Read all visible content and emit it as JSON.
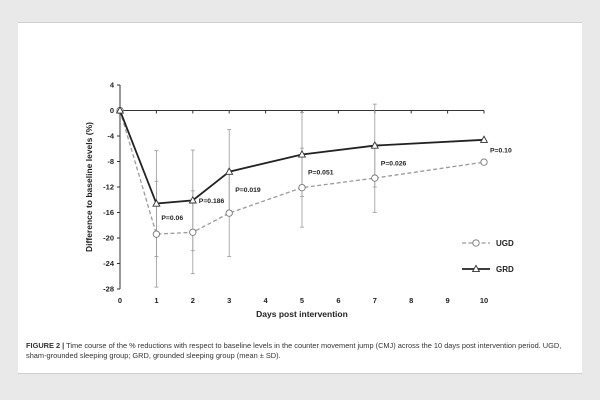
{
  "caption": {
    "label": "FIGURE 2 |",
    "text": "Time course of the % reductions with respect to baseline levels in the counter movement jump (CMJ) across the 10 days post intervention period. UGD, sham-grounded sleeping group; GRD, grounded sleeping group (mean ± SD)."
  },
  "chart_data": {
    "type": "line",
    "xlabel": "Days post intervention",
    "ylabel": "Difference to baseline levels (%)",
    "xlim": [
      0,
      10
    ],
    "ylim": [
      -28,
      4
    ],
    "xticks": [
      0,
      1,
      2,
      3,
      4,
      5,
      6,
      7,
      8,
      9,
      10
    ],
    "yticks": [
      4,
      0,
      -4,
      -8,
      -12,
      -16,
      -20,
      -24,
      -28
    ],
    "grid": false,
    "legend_position": "right",
    "series": [
      {
        "name": "UGD",
        "color": "#9a9a9a",
        "line_style": "dashed",
        "marker": "circle",
        "x": [
          0,
          1,
          2,
          3,
          5,
          7,
          10
        ],
        "y": [
          0,
          -19.4,
          -19.1,
          -16.1,
          -12.1,
          -10.6,
          -8.1
        ],
        "sd": [
          0,
          8.3,
          6.5,
          6.8,
          6.2,
          5.4,
          0
        ]
      },
      {
        "name": "GRD",
        "color": "#222222",
        "line_style": "solid",
        "marker": "triangle",
        "x": [
          0,
          1,
          2,
          3,
          5,
          7,
          10
        ],
        "y": [
          0,
          -14.6,
          -14.1,
          -9.6,
          -6.9,
          -5.5,
          -4.6
        ],
        "sd": [
          0,
          8.3,
          7.9,
          6.6,
          6.6,
          6.5,
          0
        ]
      }
    ],
    "annotations": [
      {
        "x": 1,
        "y": -17.2,
        "text": "P=0.06"
      },
      {
        "x": 2,
        "y": -14.5,
        "text": "P=0.186"
      },
      {
        "x": 3,
        "y": -12.8,
        "text": "P=0.019"
      },
      {
        "x": 5,
        "y": -10.0,
        "text": "P=0.051"
      },
      {
        "x": 7,
        "y": -8.6,
        "text": "P=0.026"
      },
      {
        "x": 10,
        "y": -6.6,
        "text": "P=0.10"
      }
    ]
  }
}
